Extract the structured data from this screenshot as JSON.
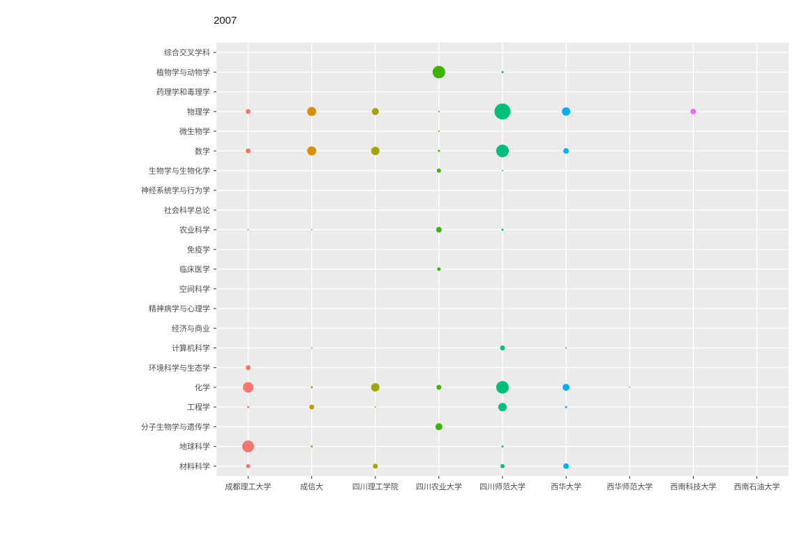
{
  "chart_data": {
    "type": "scatter",
    "subtype": "bubble",
    "title": "2007",
    "legend": "none",
    "panel_bg": "#EBEBEB",
    "grid_color": "#FFFFFF",
    "axis_text_color": "#4D4D4D",
    "tick_color": "#333333",
    "x_categories": [
      "成都理工大学",
      "成信大",
      "四川理工学院",
      "四川农业大学",
      "四川师范大学",
      "西华大学",
      "西华师范大学",
      "西南科技大学",
      "西南石油大学"
    ],
    "y_categories": [
      "综合交叉学科",
      "植物学与动物学",
      "药理学和毒理学",
      "物理学",
      "微生物学",
      "数学",
      "生物学与生物化学",
      "神经系统学与行为学",
      "社会科学总论",
      "农业科学",
      "免疫学",
      "临床医学",
      "空间科学",
      "精神病学与心理学",
      "经济与商业",
      "计算机科学",
      "环境科学与生态学",
      "化学",
      "工程学",
      "分子生物学与遗传学",
      "地球科学",
      "材料科学"
    ],
    "size_unit": "bubble radius in px as rendered",
    "series": [
      {
        "name": "成都理工大学",
        "color": "#F8766D",
        "points": [
          {
            "y": "物理学",
            "r": 3.5
          },
          {
            "y": "数学",
            "r": 3.5
          },
          {
            "y": "农业科学",
            "r": 1
          },
          {
            "y": "环境科学与生态学",
            "r": 3.5
          },
          {
            "y": "化学",
            "r": 7.5
          },
          {
            "y": "工程学",
            "r": 1.5
          },
          {
            "y": "地球科学",
            "r": 8.5
          },
          {
            "y": "材料科学",
            "r": 3
          }
        ]
      },
      {
        "name": "成信大",
        "color": "#D89000",
        "points": [
          {
            "y": "物理学",
            "r": 6.5
          },
          {
            "y": "数学",
            "r": 6.5
          },
          {
            "y": "农业科学",
            "r": 1
          },
          {
            "y": "计算机科学",
            "r": 1
          },
          {
            "y": "化学",
            "r": 1.5
          },
          {
            "y": "工程学",
            "r": 3.5
          },
          {
            "y": "地球科学",
            "r": 1.5
          }
        ]
      },
      {
        "name": "四川理工学院",
        "color": "#A3A500",
        "points": [
          {
            "y": "物理学",
            "r": 5
          },
          {
            "y": "数学",
            "r": 6
          },
          {
            "y": "化学",
            "r": 6
          },
          {
            "y": "工程学",
            "r": 1
          },
          {
            "y": "材料科学",
            "r": 3.5
          }
        ]
      },
      {
        "name": "四川农业大学",
        "color": "#39B600",
        "points": [
          {
            "y": "植物学与动物学",
            "r": 9
          },
          {
            "y": "物理学",
            "r": 1
          },
          {
            "y": "微生物学",
            "r": 1
          },
          {
            "y": "数学",
            "r": 1.5
          },
          {
            "y": "生物学与生物化学",
            "r": 3
          },
          {
            "y": "农业科学",
            "r": 4
          },
          {
            "y": "临床医学",
            "r": 2.5
          },
          {
            "y": "化学",
            "r": 3.5
          },
          {
            "y": "分子生物学与遗传学",
            "r": 5
          }
        ]
      },
      {
        "name": "四川师范大学",
        "color": "#00BF7D",
        "points": [
          {
            "y": "植物学与动物学",
            "r": 1.5
          },
          {
            "y": "物理学",
            "r": 11.5
          },
          {
            "y": "数学",
            "r": 9
          },
          {
            "y": "生物学与生物化学",
            "r": 1
          },
          {
            "y": "农业科学",
            "r": 1.5
          },
          {
            "y": "计算机科学",
            "r": 3.5
          },
          {
            "y": "化学",
            "r": 9
          },
          {
            "y": "工程学",
            "r": 6
          },
          {
            "y": "地球科学",
            "r": 1.5
          },
          {
            "y": "材料科学",
            "r": 3
          }
        ]
      },
      {
        "name": "西华大学",
        "color": "#00B0F6",
        "points": [
          {
            "y": "物理学",
            "r": 6
          },
          {
            "y": "数学",
            "r": 4
          },
          {
            "y": "计算机科学",
            "r": 1
          },
          {
            "y": "化学",
            "r": 5
          },
          {
            "y": "工程学",
            "r": 1.5
          },
          {
            "y": "材料科学",
            "r": 4
          }
        ]
      },
      {
        "name": "西华师范大学",
        "color": "#9590FF",
        "points": [
          {
            "y": "化学",
            "r": 1
          }
        ]
      },
      {
        "name": "西南科技大学",
        "color": "#E76BF3",
        "points": [
          {
            "y": "物理学",
            "r": 4
          }
        ]
      },
      {
        "name": "西南石油大学",
        "color": "#FF62BC",
        "points": []
      }
    ]
  }
}
